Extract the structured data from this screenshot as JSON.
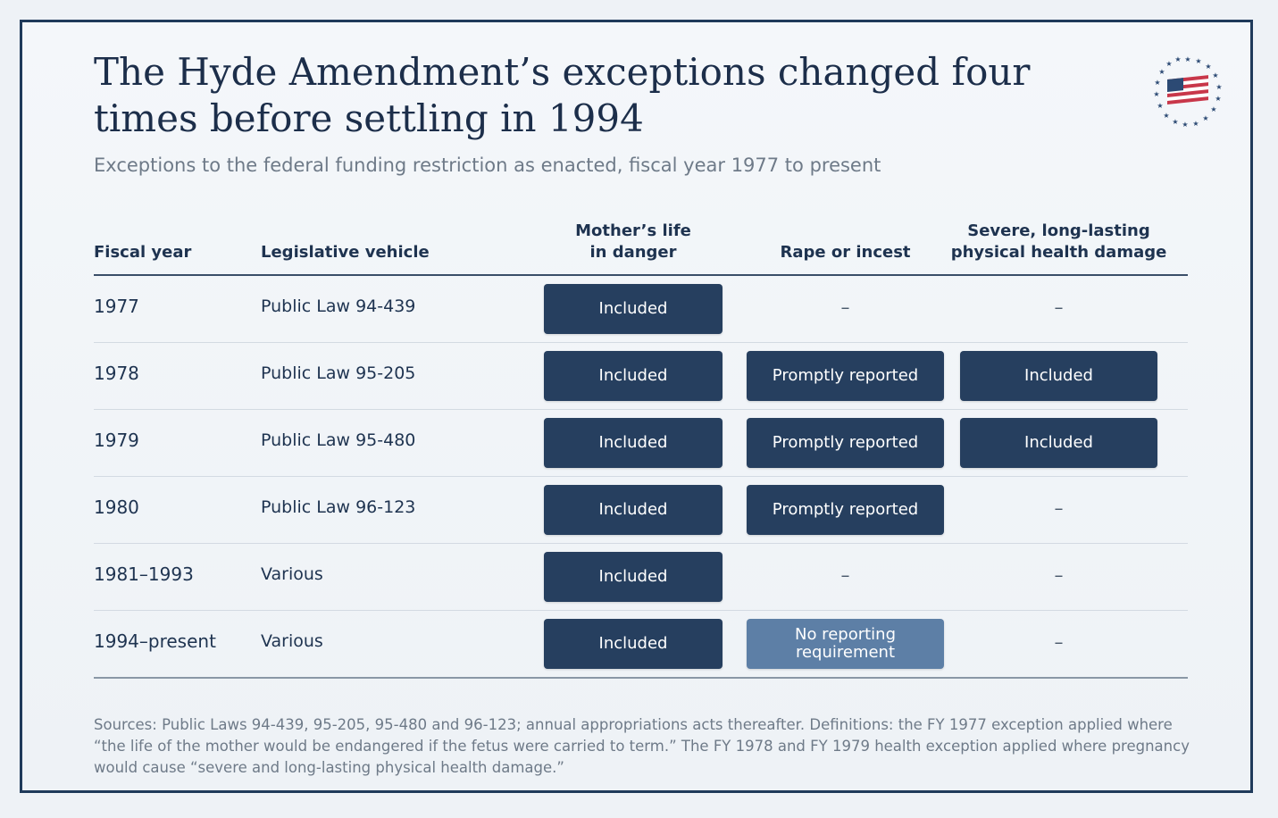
{
  "title": "The Hyde Amendment’s exceptions changed four times before settling in 1994",
  "subtitle": "Exceptions to the federal funding restriction as enacted, fiscal year 1977 to present",
  "colors": {
    "border": "#1f3a5a",
    "pill_dark": "#263f5f",
    "pill_light": "#5d7fa6",
    "flag_red": "#c8374a",
    "flag_blue": "#2c4a74"
  },
  "table": {
    "headers": {
      "fiscal_year": "Fiscal year",
      "vehicle": "Legislative vehicle",
      "life_line1": "Mother’s life",
      "life_line2": "in danger",
      "rape": "Rape or incest",
      "health_line1": "Severe, long-lasting",
      "health_line2": "physical health damage"
    },
    "rows": [
      {
        "year": "1977",
        "law": "Public Law 94-439",
        "life": "Included",
        "rape": "–",
        "health": "–"
      },
      {
        "year": "1978",
        "law": "Public Law 95-205",
        "life": "Included",
        "rape": "Promptly reported",
        "health": "Included"
      },
      {
        "year": "1979",
        "law": "Public Law 95-480",
        "life": "Included",
        "rape": "Promptly reported",
        "health": "Included"
      },
      {
        "year": "1980",
        "law": "Public Law 96-123",
        "life": "Included",
        "rape": "Promptly reported",
        "health": "–"
      },
      {
        "year": "1981–1993",
        "law": "Various",
        "life": "Included",
        "rape": "–",
        "health": "–"
      },
      {
        "year": "1994–present",
        "law": "Various",
        "life": "Included",
        "rape_line1": "No reporting",
        "rape_line2": "requirement",
        "health": "–"
      }
    ]
  },
  "sources": "Sources: Public Laws 94-439, 95-205, 95-480 and 96-123; annual appropriations acts thereafter. Definitions: the FY 1977 exception applied where “the life of the mother would be endangered if the fetus were carried to term.” The FY 1978 and FY 1979 health exception applied where pregnancy would cause “severe and long-lasting physical health damage.”"
}
